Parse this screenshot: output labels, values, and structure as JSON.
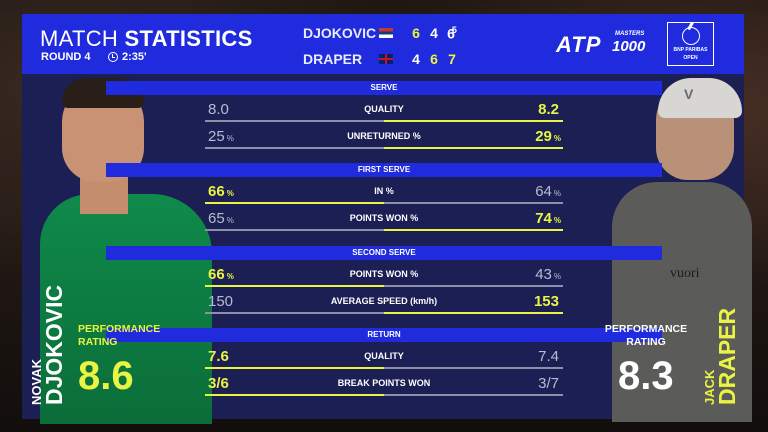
{
  "header": {
    "title_light": "MATCH",
    "title_bold": "STATISTICS",
    "round": "ROUND 4",
    "duration": "2:35'"
  },
  "scoreboard": {
    "player1": {
      "name": "DJOKOVIC",
      "flag": "srb",
      "sets": [
        "6",
        "4",
        "6"
      ],
      "tiebreak": "5"
    },
    "player2": {
      "name": "DRAPER",
      "flag": "gbr",
      "sets": [
        "4",
        "6",
        "7"
      ]
    }
  },
  "branding": {
    "atp": "ATP",
    "masters": "MASTERS",
    "masters_number": "1000",
    "tournament": [
      "BNP PARIBAS",
      "OPEN"
    ]
  },
  "sections": [
    {
      "title": "SERVE",
      "stats": [
        {
          "label": "QUALITY",
          "left": "8.0",
          "left_unit": "",
          "right": "8.2",
          "right_unit": "",
          "winner": "right"
        },
        {
          "label": "UNRETURNED %",
          "left": "25",
          "left_unit": "%",
          "right": "29",
          "right_unit": "%",
          "winner": "right"
        }
      ]
    },
    {
      "title": "FIRST SERVE",
      "stats": [
        {
          "label": "IN %",
          "left": "66",
          "left_unit": "%",
          "right": "64",
          "right_unit": "%",
          "winner": "left"
        },
        {
          "label": "POINTS WON %",
          "left": "65",
          "left_unit": "%",
          "right": "74",
          "right_unit": "%",
          "winner": "right"
        }
      ]
    },
    {
      "title": "SECOND SERVE",
      "stats": [
        {
          "label": "POINTS WON %",
          "left": "66",
          "left_unit": "%",
          "right": "43",
          "right_unit": "%",
          "winner": "left"
        },
        {
          "label": "AVERAGE SPEED (km/h)",
          "left": "150",
          "left_unit": "",
          "right": "153",
          "right_unit": "",
          "winner": "right"
        }
      ]
    },
    {
      "title": "RETURN",
      "stats": [
        {
          "label": "QUALITY",
          "left": "7.6",
          "left_unit": "",
          "right": "7.4",
          "right_unit": "",
          "winner": "left"
        },
        {
          "label": "BREAK POINTS WON",
          "left": "3/6",
          "left_unit": "",
          "right": "3/7",
          "right_unit": "",
          "winner": "left"
        }
      ]
    }
  ],
  "players": {
    "left": {
      "first_name": "NOVAK",
      "last_name": "DJOKOVIC",
      "perf_label": [
        "PERFORMANCE",
        "RATING"
      ],
      "rating": "8.6",
      "shirt_logo": ""
    },
    "right": {
      "first_name": "JACK",
      "last_name": "DRAPER",
      "perf_label": [
        "PERFORMANCE",
        "RATING"
      ],
      "rating": "8.3",
      "cap_logo": "V",
      "shirt_brand": "vuori"
    }
  },
  "colors": {
    "accent": "#e9f542",
    "header_blue": "#1f2bdc",
    "panel": "#1b1f54",
    "bar_track": "#3b3f6a"
  }
}
